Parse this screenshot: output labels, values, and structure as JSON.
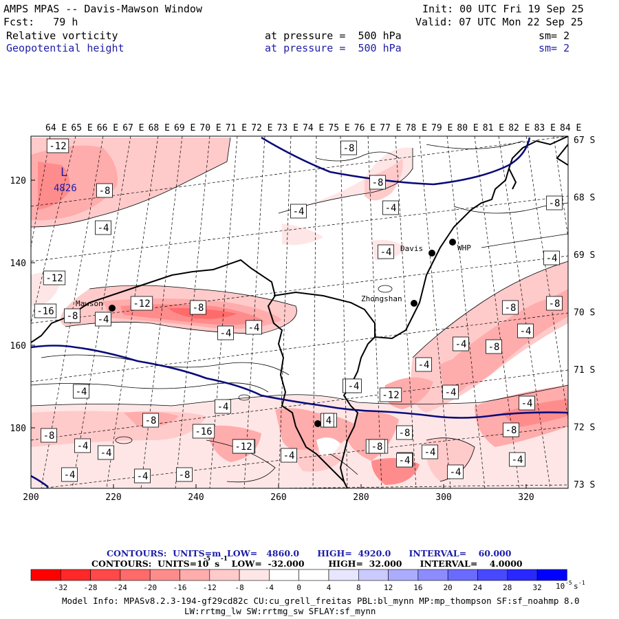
{
  "header": {
    "title": "AMPS MPAS -- Davis-Mawson Window",
    "forecast": "Fcst:   79 h",
    "init": "Init: 00 UTC Fri 19 Sep 25",
    "valid": "Valid: 07 UTC Mon 22 Sep 25",
    "field1": {
      "name": "Relative vorticity",
      "pressure": "at pressure =  500 hPa",
      "sm": "sm= 2"
    },
    "field2": {
      "name": "Geopotential height",
      "pressure": "at pressure =  500 hPa",
      "sm": "sm= 2"
    }
  },
  "map": {
    "lon_labels": [
      "64 E",
      "65 E",
      "66 E",
      "67 E",
      "68 E",
      "69 E",
      "70 E",
      "71 E",
      "72 E",
      "73 E",
      "74 E",
      "75 E",
      "76 E",
      "77 E",
      "78 E",
      "79 E",
      "80 E",
      "81 E",
      "82 E",
      "83 E",
      "84 E"
    ],
    "lat_labels": [
      "67 S",
      "68 S",
      "69 S",
      "70 S",
      "71 S",
      "72 S",
      "73 S"
    ],
    "x_ticks": [
      "200",
      "220",
      "240",
      "260",
      "280",
      "300",
      "320"
    ],
    "y_ticks": [
      "120",
      "140",
      "160",
      "180"
    ],
    "stations": [
      {
        "name": "Mawson"
      },
      {
        "name": "Davis"
      },
      {
        "name": "WHP"
      },
      {
        "name": "Zhongshan"
      },
      {
        "name": ""
      }
    ],
    "low_marker": {
      "symbol": "L",
      "value": "4826"
    },
    "contour_labels": [
      "-12",
      "-8",
      "-4",
      "-12",
      "-16",
      "-4",
      "-12",
      "-8",
      "-4",
      "-8",
      "-4",
      "-4",
      "-8",
      "-4",
      "-4",
      "-4",
      "-8",
      "-8",
      "-4",
      "-4",
      "-8",
      "-4",
      "-4",
      "-4",
      "-8",
      "-12",
      "-8",
      "-16",
      "-4",
      "-12",
      "-8",
      "-4",
      "-4",
      "-4",
      "-4",
      "-4",
      "-8",
      "-4",
      "-12",
      "-8",
      "-4",
      "-8",
      "-4",
      "-4",
      "-4",
      "-4",
      "-12",
      "-4",
      "-8",
      "-8",
      "-8",
      "-4",
      "4"
    ]
  },
  "contour_info": {
    "line1": "CONTOURS:  UNITS=m  LOW=   4860.0      HIGH=  4920.0      INTERVAL=    60.000",
    "line2": "CONTOURS:  UNITS=10  s    LOW=  -32.000        HIGH=  32.000      INTERVAL=    4.0000",
    "exp": "-5",
    "exp2": "-1"
  },
  "colorbar": {
    "colors": [
      "#ff0000",
      "#ff2828",
      "#ff4848",
      "#ff6a6a",
      "#ff8c8c",
      "#ffacac",
      "#ffcaca",
      "#ffe6e6",
      "#ffffff",
      "#ffffff",
      "#e6e6ff",
      "#cacaff",
      "#acacff",
      "#8c8cff",
      "#6a6aff",
      "#4848ff",
      "#2828ff",
      "#0000ff"
    ],
    "labels": [
      "-32",
      "-28",
      "-24",
      "-20",
      "-16",
      "-12",
      "-8",
      "-4",
      "0",
      "4",
      "8",
      "12",
      "16",
      "20",
      "24",
      "28",
      "32"
    ],
    "unit": "10",
    "unit_exp": "-5",
    "unit_s": "s",
    "unit_s_exp": "-1"
  },
  "model_info": {
    "line1": "Model Info: MPASv8.2.3-194-gf29cd82c CU:cu_grell_freitas PBL:bl_mynn MP:mp_thompson SF:sf_noahmp 8.0",
    "line2": "LW:rrtmg_lw SW:rrtmg_sw SFLAY:sf_mynn"
  }
}
